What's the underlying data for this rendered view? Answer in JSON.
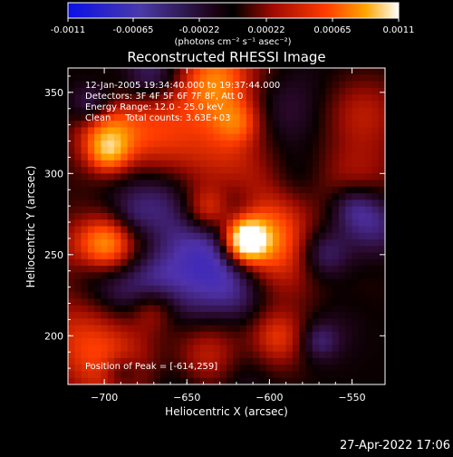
{
  "colorbar": {
    "tick_labels": [
      "-0.0011",
      "-0.00065",
      "-0.00022",
      "0.00022",
      "0.00065",
      "0.0011"
    ],
    "unit_label": "(photons cm⁻² s⁻¹ asec⁻²)",
    "range": [
      -0.0011,
      0.0011
    ]
  },
  "chart_data": {
    "type": "heatmap",
    "title": "Reconstructed RHESSI Image",
    "xlabel": "Heliocentric X (arcsec)",
    "ylabel": "Heliocentric Y (arcsec)",
    "xlim": [
      -722,
      -530
    ],
    "ylim": [
      170,
      365
    ],
    "x_ticks": [
      -700,
      -650,
      -600,
      -550
    ],
    "y_ticks": [
      200,
      250,
      300,
      350
    ],
    "info_lines": [
      "12-Jan-2005 19:34:40.000 to 19:37:44.000",
      "Detectors: 3F 4F 5F 6F 7F 8F, Att 0",
      "Energy Range: 12.0 - 25.0 keV",
      "Clean     Total counts: 3.63E+03"
    ],
    "peak_text": "Position of Peak = [-614,259]",
    "peak": {
      "x": -614,
      "y": 259,
      "value": 0.0011
    },
    "colors": {
      "low": "#1a14e0",
      "mid": "#000000",
      "high": "#ffffff",
      "hot": "#ff3c00"
    }
  },
  "footer": {
    "timestamp": "27-Apr-2022 17:06"
  }
}
